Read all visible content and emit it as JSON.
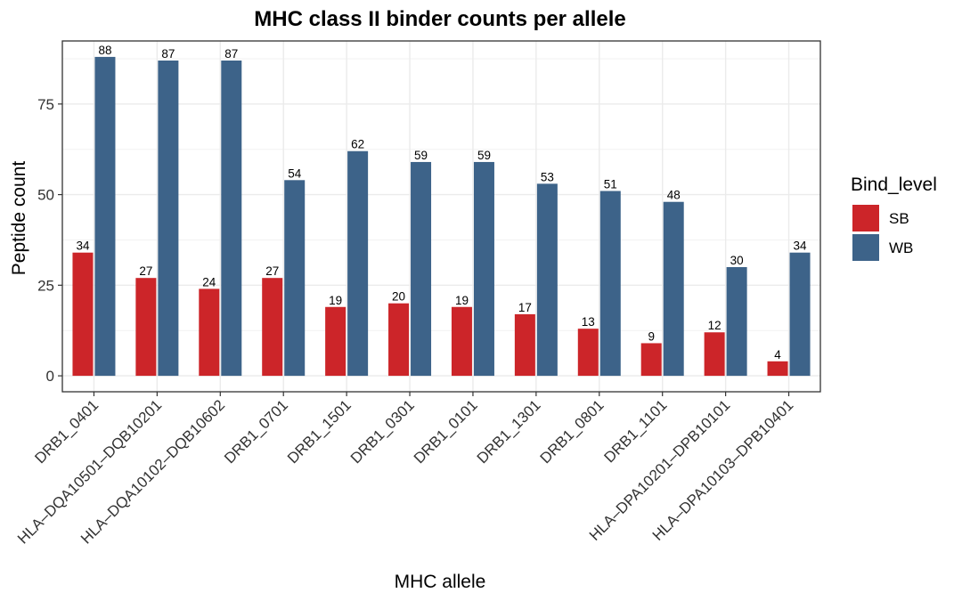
{
  "chart_data": {
    "type": "bar",
    "title": "MHC class II binder counts per allele",
    "xlabel": "MHC allele",
    "ylabel": "Peptide count",
    "categories": [
      "DRB1_0401",
      "HLA–DQA10501–DQB10201",
      "HLA–DQA10102–DQB10602",
      "DRB1_0701",
      "DRB1_1501",
      "DRB1_0301",
      "DRB1_0101",
      "DRB1_1301",
      "DRB1_0801",
      "DRB1_1101",
      "HLA–DPA10201–DPB10101",
      "HLA–DPA10103–DPB10401"
    ],
    "series": [
      {
        "name": "SB",
        "color": "#cc2529",
        "values": [
          34,
          27,
          24,
          27,
          19,
          20,
          19,
          17,
          13,
          9,
          12,
          4
        ]
      },
      {
        "name": "WB",
        "color": "#3d6389",
        "values": [
          88,
          87,
          87,
          54,
          62,
          59,
          59,
          53,
          51,
          48,
          30,
          34
        ]
      }
    ],
    "bar_value_labels": [
      [
        34,
        27,
        24,
        27,
        19,
        20,
        19,
        17,
        13,
        9,
        12,
        4
      ],
      [
        88,
        87,
        87,
        54,
        62,
        59,
        59,
        53,
        51,
        48,
        30,
        34
      ]
    ],
    "legend_title": "Bind_level",
    "legend_position": "right",
    "ylim": [
      -4.4,
      92.4
    ],
    "yticks": [
      0,
      25,
      50,
      75
    ],
    "grid": true
  }
}
